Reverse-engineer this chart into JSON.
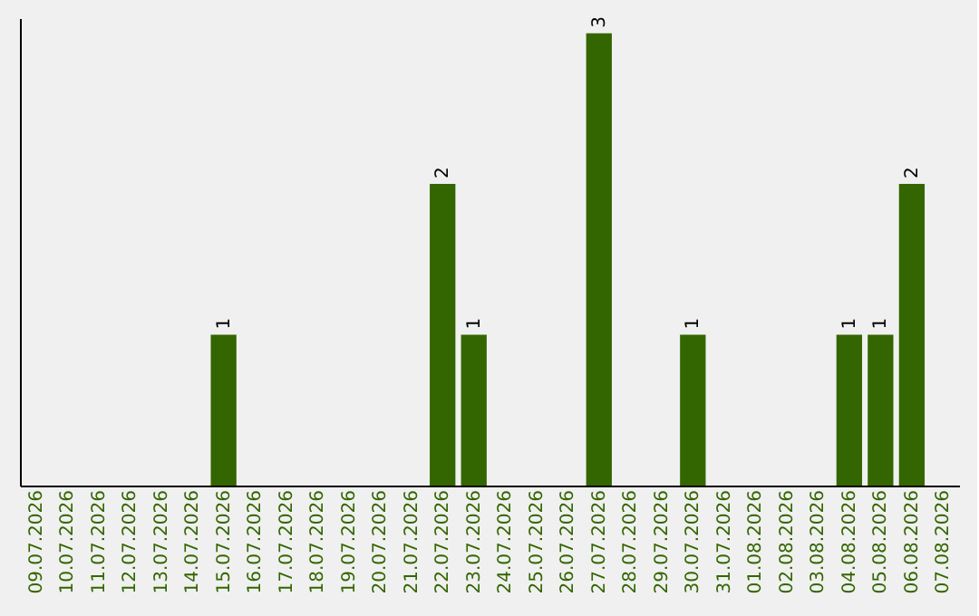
{
  "chart_data": {
    "type": "bar",
    "categories": [
      "09.07.2026",
      "10.07.2026",
      "11.07.2026",
      "12.07.2026",
      "13.07.2026",
      "14.07.2026",
      "15.07.2026",
      "16.07.2026",
      "17.07.2026",
      "18.07.2026",
      "19.07.2026",
      "20.07.2026",
      "21.07.2026",
      "22.07.2026",
      "23.07.2026",
      "24.07.2026",
      "25.07.2026",
      "26.07.2026",
      "27.07.2026",
      "28.07.2026",
      "29.07.2026",
      "30.07.2026",
      "31.07.2026",
      "01.08.2026",
      "02.08.2026",
      "03.08.2026",
      "04.08.2026",
      "05.08.2026",
      "06.08.2026",
      "07.08.2026"
    ],
    "values": [
      0,
      0,
      0,
      0,
      0,
      0,
      1,
      0,
      0,
      0,
      0,
      0,
      0,
      2,
      1,
      0,
      0,
      0,
      3,
      0,
      0,
      1,
      0,
      0,
      0,
      0,
      1,
      1,
      2,
      0
    ],
    "color": "#336600",
    "ylim": [
      0,
      3.1
    ],
    "value_labels": [
      null,
      null,
      null,
      null,
      null,
      null,
      "1",
      null,
      null,
      null,
      null,
      null,
      null,
      "2",
      "1",
      null,
      null,
      null,
      "3",
      null,
      null,
      "1",
      null,
      null,
      null,
      null,
      "1",
      "1",
      "2",
      null
    ],
    "tick_labels": "x",
    "grid": false
  }
}
